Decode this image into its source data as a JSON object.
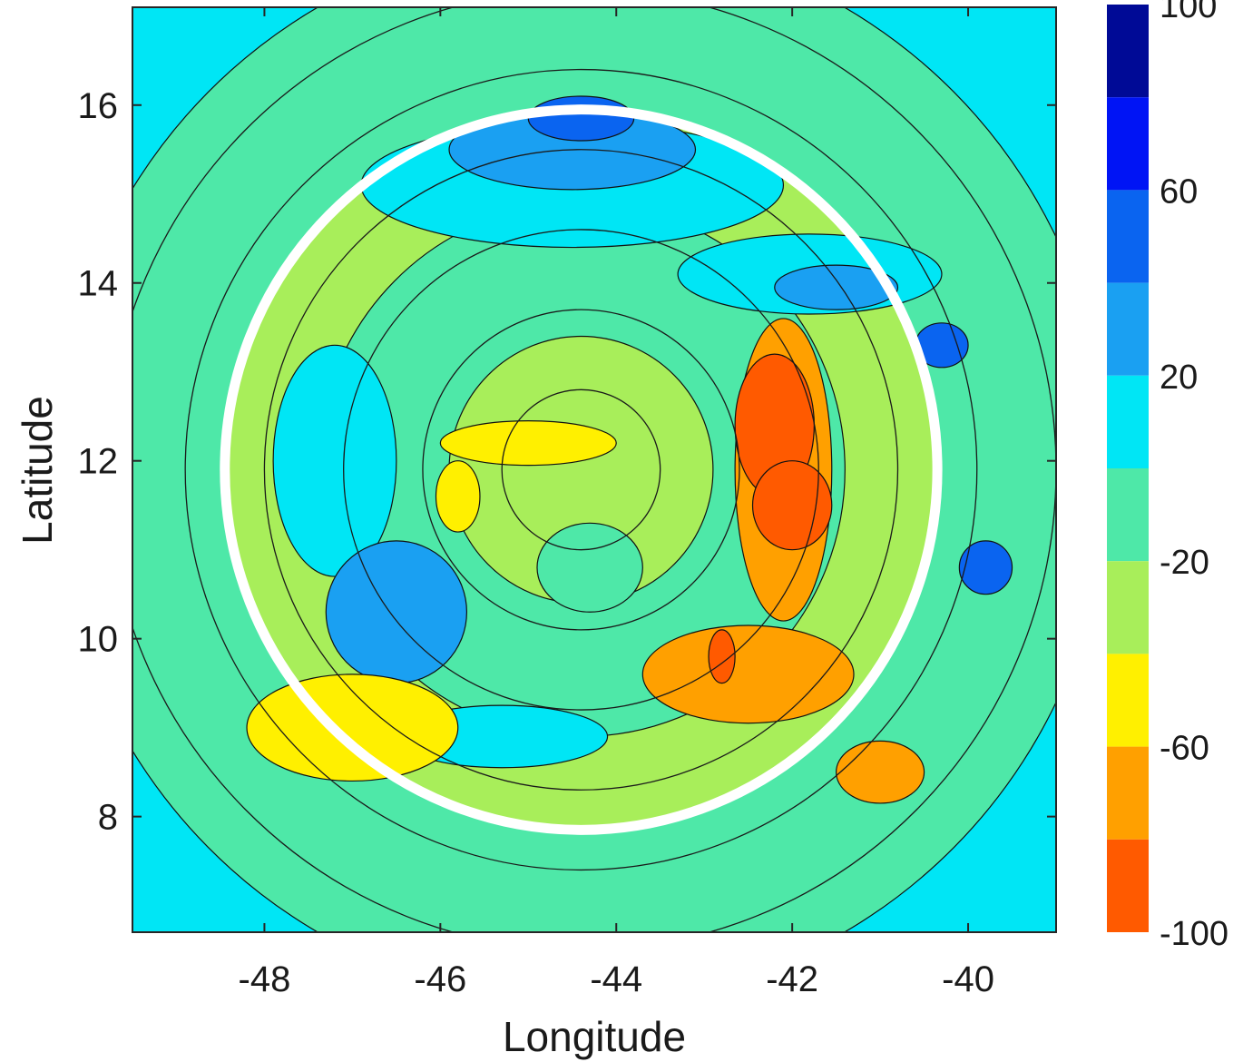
{
  "chart_data": {
    "type": "heatmap",
    "title": "",
    "xlabel": "Longitude",
    "ylabel": "Latitude",
    "xlim": [
      -49.5,
      -39.0
    ],
    "ylim": [
      6.7,
      17.1
    ],
    "x_ticks": [
      -48,
      -46,
      -44,
      -42,
      -40
    ],
    "y_ticks": [
      8,
      10,
      12,
      14,
      16
    ],
    "x_tick_labels": [
      "-48",
      "-46",
      "-44",
      "-42",
      "-40"
    ],
    "y_tick_labels": [
      "8",
      "10",
      "12",
      "14",
      "16"
    ],
    "grid": false,
    "colorbar": {
      "range": [
        -100,
        100
      ],
      "tick_values": [
        100,
        60,
        20,
        -20,
        -60,
        -100
      ],
      "tick_labels": [
        "100",
        "60",
        "20",
        "-20",
        "-60",
        "-100"
      ],
      "levels": [
        {
          "from": 80,
          "to": 100,
          "color": "#000a96"
        },
        {
          "from": 60,
          "to": 80,
          "color": "#0014f5"
        },
        {
          "from": 40,
          "to": 60,
          "color": "#0a64f0"
        },
        {
          "from": 20,
          "to": 40,
          "color": "#1aa0f2"
        },
        {
          "from": 0,
          "to": 20,
          "color": "#00e6f5"
        },
        {
          "from": -20,
          "to": 0,
          "color": "#4ee8a8"
        },
        {
          "from": -40,
          "to": -20,
          "color": "#a8ee5a"
        },
        {
          "from": -60,
          "to": -40,
          "color": "#fff000"
        },
        {
          "from": -80,
          "to": -60,
          "color": "#ffa000"
        },
        {
          "from": -100,
          "to": -80,
          "color": "#ff5a00"
        }
      ]
    },
    "ring_center": {
      "lon": -44.4,
      "lat": 11.9
    },
    "concentric_rings_deg": [
      0.9,
      1.8,
      2.7,
      3.6,
      4.5,
      5.4
    ],
    "highlight_ring": {
      "radius_deg": 4.05,
      "color": "#ffffff"
    },
    "regions": [
      {
        "lon": -44.4,
        "lat": 11.9,
        "rx": 6.0,
        "ry": 6.0,
        "level": 5
      },
      {
        "lon": -44.4,
        "lat": 11.9,
        "rx": 4.05,
        "ry": 4.05,
        "level": 6
      },
      {
        "lon": -44.4,
        "lat": 11.9,
        "rx": 3.0,
        "ry": 3.0,
        "level": 5
      },
      {
        "lon": -44.4,
        "lat": 11.9,
        "rx": 1.5,
        "ry": 1.5,
        "level": 6
      },
      {
        "lon": -44.3,
        "lat": 10.8,
        "rx": 0.6,
        "ry": 0.5,
        "level": 5
      },
      {
        "lon": -44.5,
        "lat": 15.1,
        "rx": 2.4,
        "ry": 0.7,
        "level": 4
      },
      {
        "lon": -44.5,
        "lat": 15.5,
        "rx": 1.4,
        "ry": 0.45,
        "level": 3
      },
      {
        "lon": -44.4,
        "lat": 15.85,
        "rx": 0.6,
        "ry": 0.25,
        "level": 2
      },
      {
        "lon": -41.8,
        "lat": 14.1,
        "rx": 1.5,
        "ry": 0.45,
        "level": 4
      },
      {
        "lon": -41.5,
        "lat": 13.95,
        "rx": 0.7,
        "ry": 0.25,
        "level": 3
      },
      {
        "lon": -40.3,
        "lat": 13.3,
        "rx": 0.3,
        "ry": 0.25,
        "level": 2
      },
      {
        "lon": -47.2,
        "lat": 12.0,
        "rx": 0.7,
        "ry": 1.3,
        "level": 4
      },
      {
        "lon": -46.5,
        "lat": 10.3,
        "rx": 0.8,
        "ry": 0.8,
        "level": 3
      },
      {
        "lon": -45.3,
        "lat": 8.9,
        "rx": 1.2,
        "ry": 0.35,
        "level": 4
      },
      {
        "lon": -39.8,
        "lat": 10.8,
        "rx": 0.3,
        "ry": 0.3,
        "level": 2
      },
      {
        "lon": -42.1,
        "lat": 11.9,
        "rx": 0.55,
        "ry": 1.7,
        "level": 8
      },
      {
        "lon": -42.5,
        "lat": 9.6,
        "rx": 1.2,
        "ry": 0.55,
        "level": 8
      },
      {
        "lon": -42.2,
        "lat": 12.4,
        "rx": 0.45,
        "ry": 0.8,
        "level": 9
      },
      {
        "lon": -42.0,
        "lat": 11.5,
        "rx": 0.45,
        "ry": 0.5,
        "level": 9
      },
      {
        "lon": -42.8,
        "lat": 9.8,
        "rx": 0.15,
        "ry": 0.3,
        "level": 9
      },
      {
        "lon": -45.0,
        "lat": 12.2,
        "rx": 1.0,
        "ry": 0.25,
        "level": 7
      },
      {
        "lon": -45.8,
        "lat": 11.6,
        "rx": 0.25,
        "ry": 0.4,
        "level": 7
      },
      {
        "lon": -47.0,
        "lat": 9.0,
        "rx": 1.2,
        "ry": 0.6,
        "level": 7
      },
      {
        "lon": -41.0,
        "lat": 8.5,
        "rx": 0.5,
        "ry": 0.35,
        "level": 8
      }
    ]
  }
}
